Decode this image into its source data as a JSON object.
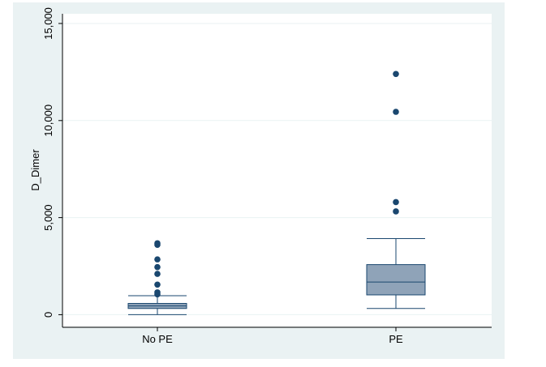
{
  "colors": {
    "outer_bg": "#eaf2f3",
    "plot_bg": "#ffffff",
    "gridline": "#eaf2f3",
    "box_fill": "#8fa3b8",
    "box_stroke": "#1a476f",
    "outlier": "#1a476f",
    "axis": "#000000",
    "text": "#000000"
  },
  "chart_data": {
    "type": "box",
    "title": "",
    "xlabel": "",
    "ylabel": "D_Dimer",
    "ylim": [
      -650,
      15500
    ],
    "yticks": [
      0,
      5000,
      10000,
      15000
    ],
    "ytick_labels": [
      "0",
      "5,000",
      "10,000",
      "15,000"
    ],
    "grid": true,
    "categories": [
      "No PE",
      "PE"
    ],
    "boxes": [
      {
        "category": "No PE",
        "whisker_low": 0,
        "q1": 320,
        "median": 450,
        "q3": 580,
        "whisker_high": 980,
        "outliers": [
          1050,
          1150,
          1550,
          2100,
          2450,
          2850,
          3600,
          3680
        ]
      },
      {
        "category": "PE",
        "whisker_low": 320,
        "q1": 1020,
        "median": 1680,
        "q3": 2580,
        "whisker_high": 3920,
        "outliers": [
          5320,
          5800,
          10450,
          12400
        ]
      }
    ]
  }
}
